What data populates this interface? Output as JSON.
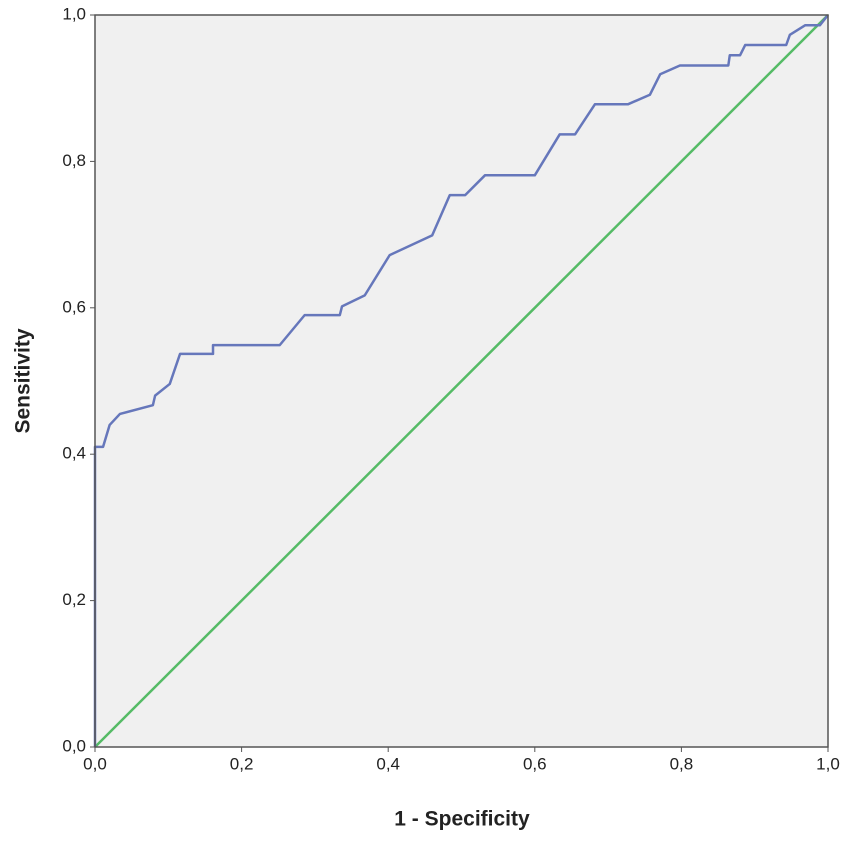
{
  "chart_data": {
    "type": "line",
    "x_label": "1 - Specificity",
    "y_label": "Sensitivity",
    "xlim": [
      0,
      1
    ],
    "ylim": [
      0,
      1
    ],
    "xticks": [
      {
        "value": 0,
        "label": "0,0"
      },
      {
        "value": 0.2,
        "label": "0,2"
      },
      {
        "value": 0.4,
        "label": "0,4"
      },
      {
        "value": 0.6,
        "label": "0,6"
      },
      {
        "value": 0.8,
        "label": "0,8"
      },
      {
        "value": 1,
        "label": "1,0"
      }
    ],
    "yticks": [
      {
        "value": 0,
        "label": "0,0"
      },
      {
        "value": 0.2,
        "label": "0,2"
      },
      {
        "value": 0.4,
        "label": "0,4"
      },
      {
        "value": 0.6,
        "label": "0,6"
      },
      {
        "value": 0.8,
        "label": "0,8"
      },
      {
        "value": 1,
        "label": "1,0"
      }
    ],
    "grid": false,
    "series": [
      {
        "color": "#6677bb",
        "x": [
          0,
          0,
          0.011,
          0.02,
          0.034,
          0.079,
          0.082,
          0.102,
          0.116,
          0.161,
          0.161,
          0.252,
          0.286,
          0.334,
          0.337,
          0.368,
          0.402,
          0.46,
          0.484,
          0.505,
          0.532,
          0.6,
          0.634,
          0.655,
          0.682,
          0.727,
          0.757,
          0.771,
          0.798,
          0.864,
          0.866,
          0.88,
          0.887,
          0.943,
          0.948,
          0.969,
          0.989,
          1
        ],
        "values": [
          0,
          0.41,
          0.41,
          0.44,
          0.455,
          0.467,
          0.48,
          0.496,
          0.537,
          0.537,
          0.549,
          0.549,
          0.59,
          0.59,
          0.602,
          0.617,
          0.672,
          0.699,
          0.754,
          0.754,
          0.781,
          0.781,
          0.837,
          0.837,
          0.878,
          0.878,
          0.891,
          0.919,
          0.931,
          0.931,
          0.945,
          0.945,
          0.959,
          0.959,
          0.973,
          0.986,
          0.986,
          1
        ]
      },
      {
        "color": "#55bb66",
        "x": [
          0,
          1
        ],
        "values": [
          0,
          1
        ]
      }
    ]
  }
}
